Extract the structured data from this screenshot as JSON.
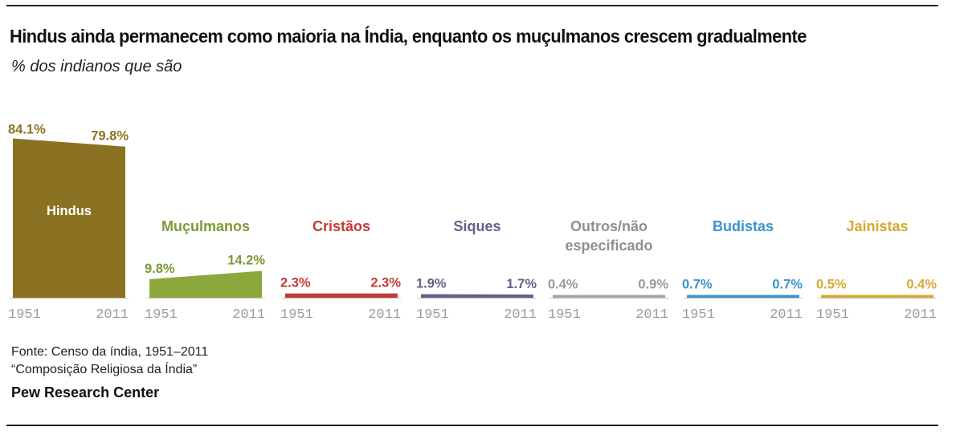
{
  "title": "Hindus ainda permanecem como maioria na Índia, enquanto os muçulmanos crescem gradualmente",
  "subtitle": "% dos indianos que são",
  "source_line1": "Fonte: Censo da índia, 1951–2011",
  "source_line2": "“Composição Religiosa da Índia”",
  "brand": "Pew Research Center",
  "chart_data": {
    "type": "area",
    "x": [
      "1951",
      "2011"
    ],
    "unit": "%",
    "series": [
      {
        "name": "Hindus",
        "values": [
          84.1,
          79.8
        ],
        "labels": [
          "84.1%",
          "79.8%"
        ],
        "color": "#8a7222",
        "label_color": "#8a7222",
        "name_color": "#ffffff"
      },
      {
        "name": "Muçulmanos",
        "values": [
          9.8,
          14.2
        ],
        "labels": [
          "9.8%",
          "14.2%"
        ],
        "color": "#8ca83c",
        "label_color": "#7e9a33",
        "name_color": "#7e9a33"
      },
      {
        "name": "Cristãos",
        "values": [
          2.3,
          2.3
        ],
        "labels": [
          "2.3%",
          "2.3%"
        ],
        "color": "#c23b36",
        "label_color": "#c23b36",
        "name_color": "#c23b36"
      },
      {
        "name": "Siques",
        "values": [
          1.9,
          1.7
        ],
        "labels": [
          "1.9%",
          "1.7%"
        ],
        "color": "#6a5d86",
        "label_color": "#6a5d86",
        "name_color": "#6a5d86"
      },
      {
        "name": "Outros/não especificado",
        "name_lines": [
          "Outros/não",
          "especificado"
        ],
        "values": [
          0.4,
          0.9
        ],
        "labels": [
          "0.4%",
          "0.9%"
        ],
        "color": "#a4a4a4",
        "label_color": "#9a9a9a",
        "name_color": "#8f8f8f"
      },
      {
        "name": "Budistas",
        "values": [
          0.7,
          0.7
        ],
        "labels": [
          "0.7%",
          "0.7%"
        ],
        "color": "#3c93cf",
        "label_color": "#3c93cf",
        "name_color": "#3c93cf"
      },
      {
        "name": "Jainistas",
        "values": [
          0.5,
          0.4
        ],
        "labels": [
          "0.5%",
          "0.4%"
        ],
        "color": "#d8a832",
        "label_color": "#d8a832",
        "name_color": "#d8a832"
      }
    ],
    "ylim": [
      0,
      84.1
    ],
    "grid": false,
    "legend": "none"
  }
}
